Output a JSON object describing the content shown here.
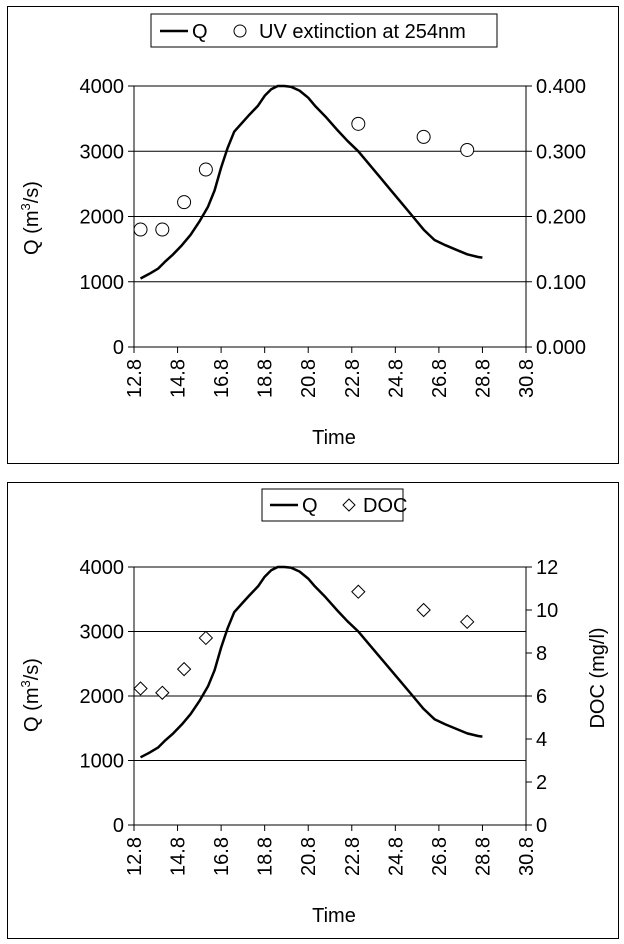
{
  "charts": [
    {
      "legend": {
        "line_label": "Q",
        "marker_label": "UV extinction at 254nm"
      },
      "left_axis_label": {
        "main": "Q (m",
        "sup": "3",
        "tail": "/s)"
      },
      "right_axis_label": "",
      "xlabel": "Time"
    },
    {
      "legend": {
        "line_label": "Q",
        "marker_label": "DOC"
      },
      "left_axis_label": {
        "main": "Q (m",
        "sup": "3",
        "tail": "/s)"
      },
      "right_axis_label": "DOC (mg/l)",
      "xlabel": "Time"
    }
  ],
  "chart_data": [
    {
      "type": "line",
      "xlabel": "Time",
      "x_ticks": [
        "12.8",
        "14.8",
        "16.8",
        "18.8",
        "20.8",
        "22.8",
        "24.8",
        "26.8",
        "28.8",
        "30.8"
      ],
      "xlim": [
        12.8,
        30.8
      ],
      "y_ticks": [
        "0",
        "1000",
        "2000",
        "3000",
        "4000"
      ],
      "ylim": [
        0,
        4000
      ],
      "y2_ticks": [
        "0.000",
        "0.100",
        "0.200",
        "0.300",
        "0.400"
      ],
      "y2lim": [
        0,
        0.4
      ],
      "grid": "horizontal",
      "legend_position": "top",
      "series": [
        {
          "name": "Q",
          "axis": "left",
          "style": "line",
          "x": [
            13.1,
            13.5,
            13.9,
            14.2,
            14.6,
            15.0,
            15.4,
            15.8,
            16.2,
            16.5,
            16.8,
            17.1,
            17.4,
            17.8,
            18.1,
            18.5,
            18.8,
            19.1,
            19.4,
            19.7,
            20.0,
            20.4,
            20.8,
            21.1,
            21.6,
            22.1,
            22.6,
            23.1,
            23.6,
            24.1,
            24.6,
            25.1,
            25.6,
            26.1,
            26.6,
            27.1,
            27.6,
            28.1,
            28.6,
            28.8
          ],
          "y": [
            1050,
            1120,
            1200,
            1300,
            1420,
            1560,
            1720,
            1920,
            2150,
            2400,
            2750,
            3050,
            3300,
            3450,
            3560,
            3700,
            3850,
            3950,
            4000,
            4000,
            3990,
            3930,
            3820,
            3700,
            3530,
            3340,
            3160,
            3000,
            2800,
            2600,
            2400,
            2200,
            2000,
            1800,
            1640,
            1560,
            1490,
            1420,
            1380,
            1370
          ]
        },
        {
          "name": "UV extinction at 254nm",
          "axis": "right",
          "style": "marker-circle",
          "x": [
            13.1,
            14.1,
            15.1,
            16.1,
            23.1,
            26.1,
            28.1
          ],
          "y": [
            0.18,
            0.18,
            0.222,
            0.272,
            0.342,
            0.322,
            0.302
          ]
        }
      ]
    },
    {
      "type": "line",
      "xlabel": "Time",
      "x_ticks": [
        "12.8",
        "14.8",
        "16.8",
        "18.8",
        "20.8",
        "22.8",
        "24.8",
        "26.8",
        "28.8",
        "30.8"
      ],
      "xlim": [
        12.8,
        30.8
      ],
      "y_ticks": [
        "0",
        "1000",
        "2000",
        "3000",
        "4000"
      ],
      "ylim": [
        0,
        4000
      ],
      "y2_ticks": [
        "0",
        "2",
        "4",
        "6",
        "8",
        "10",
        "12"
      ],
      "y2lim": [
        0,
        12
      ],
      "y2label": "DOC (mg/l)",
      "grid": "horizontal",
      "legend_position": "top",
      "series": [
        {
          "name": "Q",
          "axis": "left",
          "style": "line",
          "x": [
            13.1,
            13.5,
            13.9,
            14.2,
            14.6,
            15.0,
            15.4,
            15.8,
            16.2,
            16.5,
            16.8,
            17.1,
            17.4,
            17.8,
            18.1,
            18.5,
            18.8,
            19.1,
            19.4,
            19.7,
            20.0,
            20.4,
            20.8,
            21.1,
            21.6,
            22.1,
            22.6,
            23.1,
            23.6,
            24.1,
            24.6,
            25.1,
            25.6,
            26.1,
            26.6,
            27.1,
            27.6,
            28.1,
            28.6,
            28.8
          ],
          "y": [
            1050,
            1120,
            1200,
            1300,
            1420,
            1560,
            1720,
            1920,
            2150,
            2400,
            2750,
            3050,
            3300,
            3450,
            3560,
            3700,
            3850,
            3950,
            4000,
            4000,
            3990,
            3930,
            3820,
            3700,
            3530,
            3340,
            3160,
            3000,
            2800,
            2600,
            2400,
            2200,
            2000,
            1800,
            1640,
            1560,
            1490,
            1420,
            1380,
            1370
          ]
        },
        {
          "name": "DOC",
          "axis": "right",
          "style": "marker-diamond",
          "x": [
            13.1,
            14.1,
            15.1,
            16.1,
            23.1,
            26.1,
            28.1
          ],
          "y": [
            6.35,
            6.15,
            7.25,
            8.7,
            10.85,
            10.0,
            9.45
          ]
        }
      ]
    }
  ]
}
